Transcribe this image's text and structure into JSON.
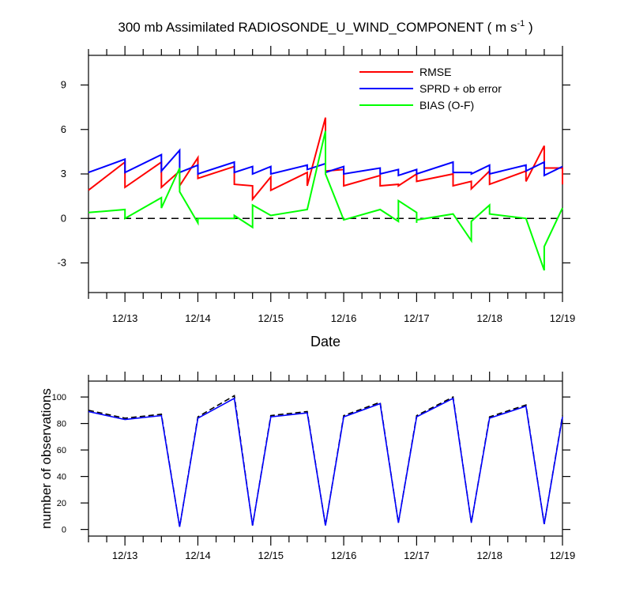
{
  "chart_data": [
    {
      "type": "line",
      "title": "300 mb Assimilated RADIOSONDE_U_WIND_COMPONENT ( m s",
      "title_units_sup": "-1",
      "title_tail": " )",
      "xlabel": "Date",
      "ylabel": "",
      "x_ticklabels": [
        "12/13",
        "12/14",
        "12/15",
        "12/16",
        "12/17",
        "12/18",
        "12/19"
      ],
      "x_tick_days": [
        13,
        14,
        15,
        16,
        17,
        18,
        19
      ],
      "xlim_days": [
        12.5,
        19.0
      ],
      "ylim": [
        -5,
        11
      ],
      "y_ticks": [
        -3,
        0,
        3,
        6,
        9
      ],
      "y_ticklabels": [
        "-3",
        "0",
        "3",
        "6",
        "9"
      ],
      "zero_line": true,
      "legend_position": "top-right",
      "series": [
        {
          "name": "RMSE",
          "color": "#ff0000",
          "points": [
            [
              12.5,
              1.9
            ],
            [
              13.0,
              3.8
            ],
            [
              13.0,
              2.1
            ],
            [
              13.5,
              3.8
            ],
            [
              13.5,
              2.1
            ],
            [
              13.75,
              3.2
            ],
            [
              13.75,
              2.2
            ],
            [
              14.0,
              4.1
            ],
            [
              14.0,
              2.7
            ],
            [
              14.5,
              3.5
            ],
            [
              14.5,
              2.3
            ],
            [
              14.75,
              2.2
            ],
            [
              14.75,
              1.3
            ],
            [
              15.0,
              2.8
            ],
            [
              15.0,
              1.9
            ],
            [
              15.5,
              3.1
            ],
            [
              15.5,
              2.2
            ],
            [
              15.75,
              6.8
            ],
            [
              15.75,
              3.2
            ],
            [
              16.0,
              3.3
            ],
            [
              16.0,
              2.2
            ],
            [
              16.5,
              2.9
            ],
            [
              16.5,
              2.2
            ],
            [
              16.75,
              2.3
            ],
            [
              16.75,
              2.2
            ],
            [
              17.0,
              3.0
            ],
            [
              17.0,
              2.5
            ],
            [
              17.5,
              3.0
            ],
            [
              17.5,
              2.2
            ],
            [
              17.75,
              2.5
            ],
            [
              17.75,
              2.0
            ],
            [
              18.0,
              3.2
            ],
            [
              18.0,
              2.3
            ],
            [
              18.5,
              3.2
            ],
            [
              18.5,
              2.5
            ],
            [
              18.75,
              4.9
            ],
            [
              18.75,
              3.4
            ],
            [
              19.0,
              3.4
            ],
            [
              19.0,
              2.3
            ]
          ]
        },
        {
          "name": "SPRD + ob error",
          "color": "#0000ff",
          "points": [
            [
              12.5,
              3.1
            ],
            [
              13.0,
              4.0
            ],
            [
              13.0,
              3.1
            ],
            [
              13.5,
              4.3
            ],
            [
              13.5,
              3.2
            ],
            [
              13.75,
              4.6
            ],
            [
              13.75,
              3.1
            ],
            [
              14.0,
              3.6
            ],
            [
              14.0,
              3.0
            ],
            [
              14.5,
              3.8
            ],
            [
              14.5,
              3.1
            ],
            [
              14.75,
              3.5
            ],
            [
              14.75,
              3.0
            ],
            [
              15.0,
              3.5
            ],
            [
              15.0,
              3.0
            ],
            [
              15.5,
              3.6
            ],
            [
              15.5,
              3.3
            ],
            [
              15.75,
              3.7
            ],
            [
              15.75,
              3.1
            ],
            [
              16.0,
              3.5
            ],
            [
              16.0,
              3.0
            ],
            [
              16.5,
              3.4
            ],
            [
              16.5,
              3.0
            ],
            [
              16.75,
              3.3
            ],
            [
              16.75,
              2.9
            ],
            [
              17.0,
              3.3
            ],
            [
              17.0,
              3.0
            ],
            [
              17.5,
              3.8
            ],
            [
              17.5,
              3.1
            ],
            [
              17.75,
              3.1
            ],
            [
              17.75,
              3.0
            ],
            [
              18.0,
              3.6
            ],
            [
              18.0,
              3.0
            ],
            [
              18.5,
              3.6
            ],
            [
              18.5,
              3.2
            ],
            [
              18.75,
              3.8
            ],
            [
              18.75,
              2.9
            ],
            [
              19.0,
              3.5
            ]
          ]
        },
        {
          "name": "BIAS (O-F)",
          "color": "#00ff00",
          "points": [
            [
              12.5,
              0.4
            ],
            [
              13.0,
              0.6
            ],
            [
              13.0,
              0.0
            ],
            [
              13.5,
              1.4
            ],
            [
              13.5,
              0.7
            ],
            [
              13.75,
              3.4
            ],
            [
              13.75,
              1.8
            ],
            [
              14.0,
              -0.3
            ],
            [
              14.0,
              0.0
            ],
            [
              14.5,
              0.0
            ],
            [
              14.5,
              0.2
            ],
            [
              14.75,
              -0.6
            ],
            [
              14.75,
              0.9
            ],
            [
              15.0,
              0.2
            ],
            [
              15.5,
              0.6
            ],
            [
              15.75,
              5.9
            ],
            [
              15.75,
              3.0
            ],
            [
              16.0,
              -0.1
            ],
            [
              16.5,
              0.6
            ],
            [
              16.5,
              0.6
            ],
            [
              16.75,
              -0.2
            ],
            [
              16.75,
              1.2
            ],
            [
              17.0,
              0.4
            ],
            [
              17.0,
              -0.3
            ],
            [
              17.0,
              -0.1
            ],
            [
              17.5,
              0.3
            ],
            [
              17.75,
              -1.5
            ],
            [
              17.75,
              -0.2
            ],
            [
              18.0,
              0.9
            ],
            [
              18.0,
              0.3
            ],
            [
              18.5,
              0.0
            ],
            [
              18.75,
              -3.5
            ],
            [
              18.75,
              -1.9
            ],
            [
              19.0,
              0.7
            ]
          ]
        }
      ]
    },
    {
      "type": "line",
      "title": "",
      "xlabel": "",
      "ylabel": "number of observations",
      "x_ticklabels": [
        "12/13",
        "12/14",
        "12/15",
        "12/16",
        "12/17",
        "12/18",
        "12/19"
      ],
      "x_tick_days": [
        13,
        14,
        15,
        16,
        17,
        18,
        19
      ],
      "xlim_days": [
        12.5,
        19.0
      ],
      "ylim": [
        -5,
        112
      ],
      "y_ticks": [
        0,
        20,
        40,
        60,
        80,
        100
      ],
      "y_ticklabels": [
        "0",
        "20",
        "40",
        "60",
        "80",
        "100"
      ],
      "series": [
        {
          "style": "dashed",
          "color": "#000000",
          "points": [
            [
              12.5,
              90
            ],
            [
              13.0,
              84
            ],
            [
              13.5,
              87
            ],
            [
              13.75,
              2
            ],
            [
              14.0,
              85
            ],
            [
              14.5,
              101
            ],
            [
              14.75,
              3
            ],
            [
              15.0,
              86
            ],
            [
              15.5,
              89
            ],
            [
              15.75,
              3
            ],
            [
              16.0,
              86
            ],
            [
              16.5,
              96
            ],
            [
              16.75,
              5
            ],
            [
              17.0,
              86
            ],
            [
              17.5,
              100
            ],
            [
              17.75,
              5
            ],
            [
              18.0,
              85
            ],
            [
              18.5,
              94
            ],
            [
              18.75,
              4
            ],
            [
              19.0,
              86
            ]
          ]
        },
        {
          "style": "solid",
          "color": "#0000ff",
          "points": [
            [
              12.5,
              89
            ],
            [
              13.0,
              83
            ],
            [
              13.5,
              86
            ],
            [
              13.75,
              2
            ],
            [
              14.0,
              84
            ],
            [
              14.5,
              99
            ],
            [
              14.75,
              3
            ],
            [
              15.0,
              85
            ],
            [
              15.5,
              88
            ],
            [
              15.75,
              3
            ],
            [
              16.0,
              85
            ],
            [
              16.5,
              95
            ],
            [
              16.75,
              5
            ],
            [
              17.0,
              85
            ],
            [
              17.5,
              99
            ],
            [
              17.75,
              5
            ],
            [
              18.0,
              84
            ],
            [
              18.5,
              93
            ],
            [
              18.75,
              4
            ],
            [
              19.0,
              85
            ]
          ]
        }
      ]
    }
  ]
}
